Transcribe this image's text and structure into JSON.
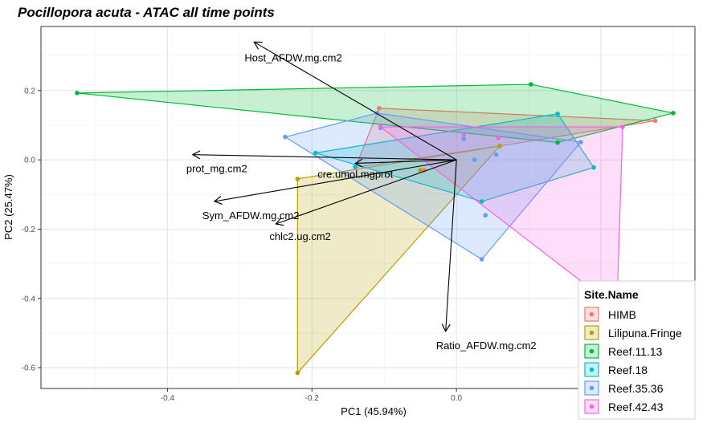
{
  "chart_data": {
    "type": "scatter",
    "title": "Pocillopora acuta - ATAC all time points",
    "xlabel": "PC1 (45.94%)",
    "ylabel": "PC2 (25.47%)",
    "xlim": [
      -0.575,
      0.33
    ],
    "ylim": [
      -0.66,
      0.385
    ],
    "x_ticks": [
      -0.4,
      -0.2,
      0.0
    ],
    "x_tick_labels": [
      "-0.4",
      "-0.2",
      "0.0"
    ],
    "y_ticks": [
      0.2,
      0.0,
      -0.2,
      -0.4,
      -0.6
    ],
    "y_tick_labels": [
      "0.2",
      "0.0",
      "-0.2",
      "-0.4",
      "-0.6"
    ],
    "grid": true,
    "legend": {
      "title": "Site.Name",
      "placement": "bottom-right"
    },
    "series": [
      {
        "name": "HIMB",
        "color": "#F8766D",
        "points": [
          [
            -0.107,
            0.149
          ],
          [
            0.275,
            0.113
          ],
          [
            -0.14,
            -0.022
          ],
          [
            0.06,
            0.04
          ],
          [
            -0.045,
            -0.03
          ]
        ],
        "hull": [
          [
            -0.107,
            0.149
          ],
          [
            0.275,
            0.113
          ],
          [
            0.06,
            0.04
          ],
          [
            -0.14,
            -0.022
          ]
        ]
      },
      {
        "name": "Lilipuna.Fringe",
        "color": "#B79F00",
        "points": [
          [
            -0.22,
            -0.055
          ],
          [
            -0.22,
            -0.615
          ],
          [
            0.06,
            0.04
          ],
          [
            -0.05,
            -0.03
          ]
        ],
        "hull": [
          [
            -0.22,
            -0.055
          ],
          [
            0.06,
            0.04
          ],
          [
            -0.22,
            -0.615
          ]
        ]
      },
      {
        "name": "Reef.11.13",
        "color": "#00BA38",
        "points": [
          [
            -0.525,
            0.193
          ],
          [
            0.103,
            0.218
          ],
          [
            0.3,
            0.135
          ],
          [
            0.14,
            0.05
          ],
          [
            0.14,
            0.05
          ]
        ],
        "hull": [
          [
            -0.525,
            0.193
          ],
          [
            0.103,
            0.218
          ],
          [
            0.3,
            0.135
          ],
          [
            0.14,
            0.05
          ]
        ]
      },
      {
        "name": "Reef.18",
        "color": "#00BFC4",
        "points": [
          [
            -0.195,
            0.02
          ],
          [
            0.14,
            0.133
          ],
          [
            0.19,
            -0.022
          ],
          [
            0.035,
            -0.12
          ],
          [
            -0.14,
            -0.02
          ]
        ],
        "hull": [
          [
            -0.195,
            0.02
          ],
          [
            0.14,
            0.133
          ],
          [
            0.19,
            -0.022
          ],
          [
            0.035,
            -0.12
          ]
        ]
      },
      {
        "name": "Reef.35.36",
        "color": "#619CFF",
        "points": [
          [
            -0.237,
            0.066
          ],
          [
            -0.11,
            0.135
          ],
          [
            0.172,
            0.051
          ],
          [
            0.035,
            -0.287
          ],
          [
            0.025,
            0.0
          ],
          [
            0.055,
            0.015
          ],
          [
            -0.105,
            0.092
          ],
          [
            0.04,
            -0.16
          ],
          [
            0.01,
            0.06
          ]
        ],
        "hull": [
          [
            -0.237,
            0.066
          ],
          [
            -0.11,
            0.135
          ],
          [
            0.172,
            0.051
          ],
          [
            0.035,
            -0.287
          ]
        ]
      },
      {
        "name": "Reef.42.43",
        "color": "#F564E3",
        "points": [
          [
            -0.105,
            0.095
          ],
          [
            0.23,
            0.095
          ],
          [
            0.222,
            -0.43
          ],
          [
            0.058,
            0.063
          ],
          [
            0.01,
            0.072
          ]
        ],
        "hull": [
          [
            -0.105,
            0.095
          ],
          [
            0.23,
            0.095
          ],
          [
            0.222,
            -0.43
          ]
        ]
      }
    ],
    "loadings": [
      {
        "name": "Host_AFDW.mg.cm2",
        "x": -0.28,
        "y": 0.34
      },
      {
        "name": "prot_mg.cm2",
        "x": -0.365,
        "y": 0.015
      },
      {
        "name": "cre.umol.mgprot",
        "x": -0.14,
        "y": -0.01
      },
      {
        "name": "Sym_AFDW.mg.cm2",
        "x": -0.335,
        "y": -0.12
      },
      {
        "name": "chlc2.ug.cm2",
        "x": -0.25,
        "y": -0.185
      },
      {
        "name": "Ratio_AFDW.mg.cm2",
        "x": -0.015,
        "y": -0.495
      }
    ],
    "loading_origin": [
      0.0,
      0.0
    ]
  }
}
